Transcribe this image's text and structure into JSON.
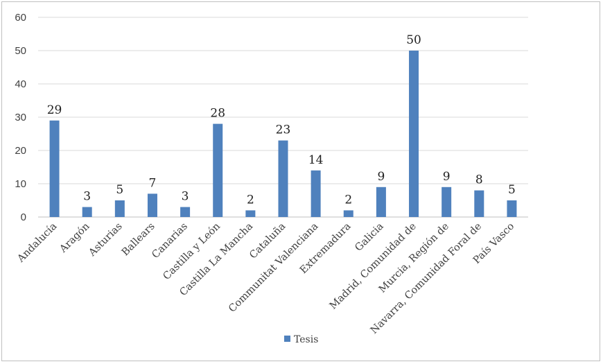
{
  "chart_data": {
    "type": "bar",
    "categories": [
      "Andalucía",
      "Aragón",
      "Asturias",
      "Ballears",
      "Canarias",
      "Castilla y León",
      "Castilla La Mancha",
      "Cataluña",
      "Communitat Valenciana",
      "Extremadura",
      "Galicia",
      "Madrid, Comunidad de",
      "Murcia, Región de",
      "Navarra, Comunidad Foral de",
      "País Vasco"
    ],
    "series": [
      {
        "name": "Tesis",
        "values": [
          29,
          3,
          5,
          7,
          3,
          28,
          2,
          23,
          14,
          2,
          9,
          50,
          9,
          8,
          5
        ]
      }
    ],
    "ylim": [
      0,
      60
    ],
    "yticks": [
      0,
      10,
      20,
      30,
      40,
      50,
      60
    ],
    "grid": true,
    "data_labels": true,
    "legend": "bottom",
    "colors": {
      "bar": "#4f81bd",
      "grid": "#d9d9d9"
    }
  }
}
